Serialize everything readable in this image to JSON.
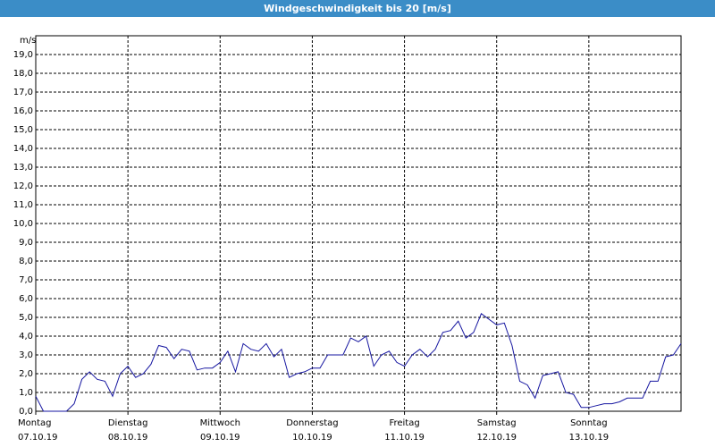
{
  "chart_data": {
    "type": "line",
    "title": "Windgeschwindigkeit bis 20 [m/s]",
    "y_unit": "m/s",
    "color": "#1616a0",
    "grid": true,
    "ylim": [
      0,
      20
    ],
    "yticks": [
      {
        "value": 0,
        "label": "0,0"
      },
      {
        "value": 1,
        "label": "1,0"
      },
      {
        "value": 2,
        "label": "2,0"
      },
      {
        "value": 3,
        "label": "3,0"
      },
      {
        "value": 4,
        "label": "4,0"
      },
      {
        "value": 5,
        "label": "5,0"
      },
      {
        "value": 6,
        "label": "6,0"
      },
      {
        "value": 7,
        "label": "7,0"
      },
      {
        "value": 8,
        "label": "8,0"
      },
      {
        "value": 9,
        "label": "9,0"
      },
      {
        "value": 10,
        "label": "10,0"
      },
      {
        "value": 11,
        "label": "11,0"
      },
      {
        "value": 12,
        "label": "12,0"
      },
      {
        "value": 13,
        "label": "13,0"
      },
      {
        "value": 14,
        "label": "14,0"
      },
      {
        "value": 15,
        "label": "15,0"
      },
      {
        "value": 16,
        "label": "16,0"
      },
      {
        "value": 17,
        "label": "17,0"
      },
      {
        "value": 18,
        "label": "18,0"
      },
      {
        "value": 19,
        "label": "19,0"
      }
    ],
    "xlim": [
      0,
      7
    ],
    "xticks": [
      {
        "value": 0,
        "label": "Montag",
        "date": "07.10.19"
      },
      {
        "value": 1,
        "label": "Dienstag",
        "date": "08.10.19"
      },
      {
        "value": 2,
        "label": "Mittwoch",
        "date": "09.10.19"
      },
      {
        "value": 3,
        "label": "Donnerstag",
        "date": "10.10.19"
      },
      {
        "value": 4,
        "label": "Freitag",
        "date": "11.10.19"
      },
      {
        "value": 5,
        "label": "Samstag",
        "date": "12.10.19"
      },
      {
        "value": 6,
        "label": "Sonntag",
        "date": "13.10.19"
      }
    ],
    "values": [
      0.8,
      0.0,
      0.0,
      0.0,
      0.0,
      0.4,
      1.7,
      2.1,
      1.7,
      1.6,
      0.8,
      2.0,
      2.4,
      1.8,
      2.0,
      2.5,
      3.5,
      3.4,
      2.8,
      3.3,
      3.2,
      2.2,
      2.3,
      2.3,
      2.6,
      3.2,
      2.1,
      3.6,
      3.3,
      3.2,
      3.6,
      2.9,
      3.3,
      1.8,
      2.0,
      2.1,
      2.3,
      2.3,
      3.0,
      3.0,
      3.0,
      3.9,
      3.7,
      4.0,
      2.4,
      3.0,
      3.2,
      2.6,
      2.4,
      3.0,
      3.3,
      2.9,
      3.3,
      4.2,
      4.3,
      4.8,
      3.9,
      4.2,
      5.2,
      4.9,
      4.6,
      4.7,
      3.5,
      1.6,
      1.4,
      0.7,
      1.9,
      2.0,
      2.1,
      1.0,
      0.9,
      0.2,
      0.2,
      0.3,
      0.4,
      0.4,
      0.5,
      0.7,
      0.7,
      0.7,
      1.6,
      1.6,
      2.9,
      3.0,
      3.6
    ]
  }
}
